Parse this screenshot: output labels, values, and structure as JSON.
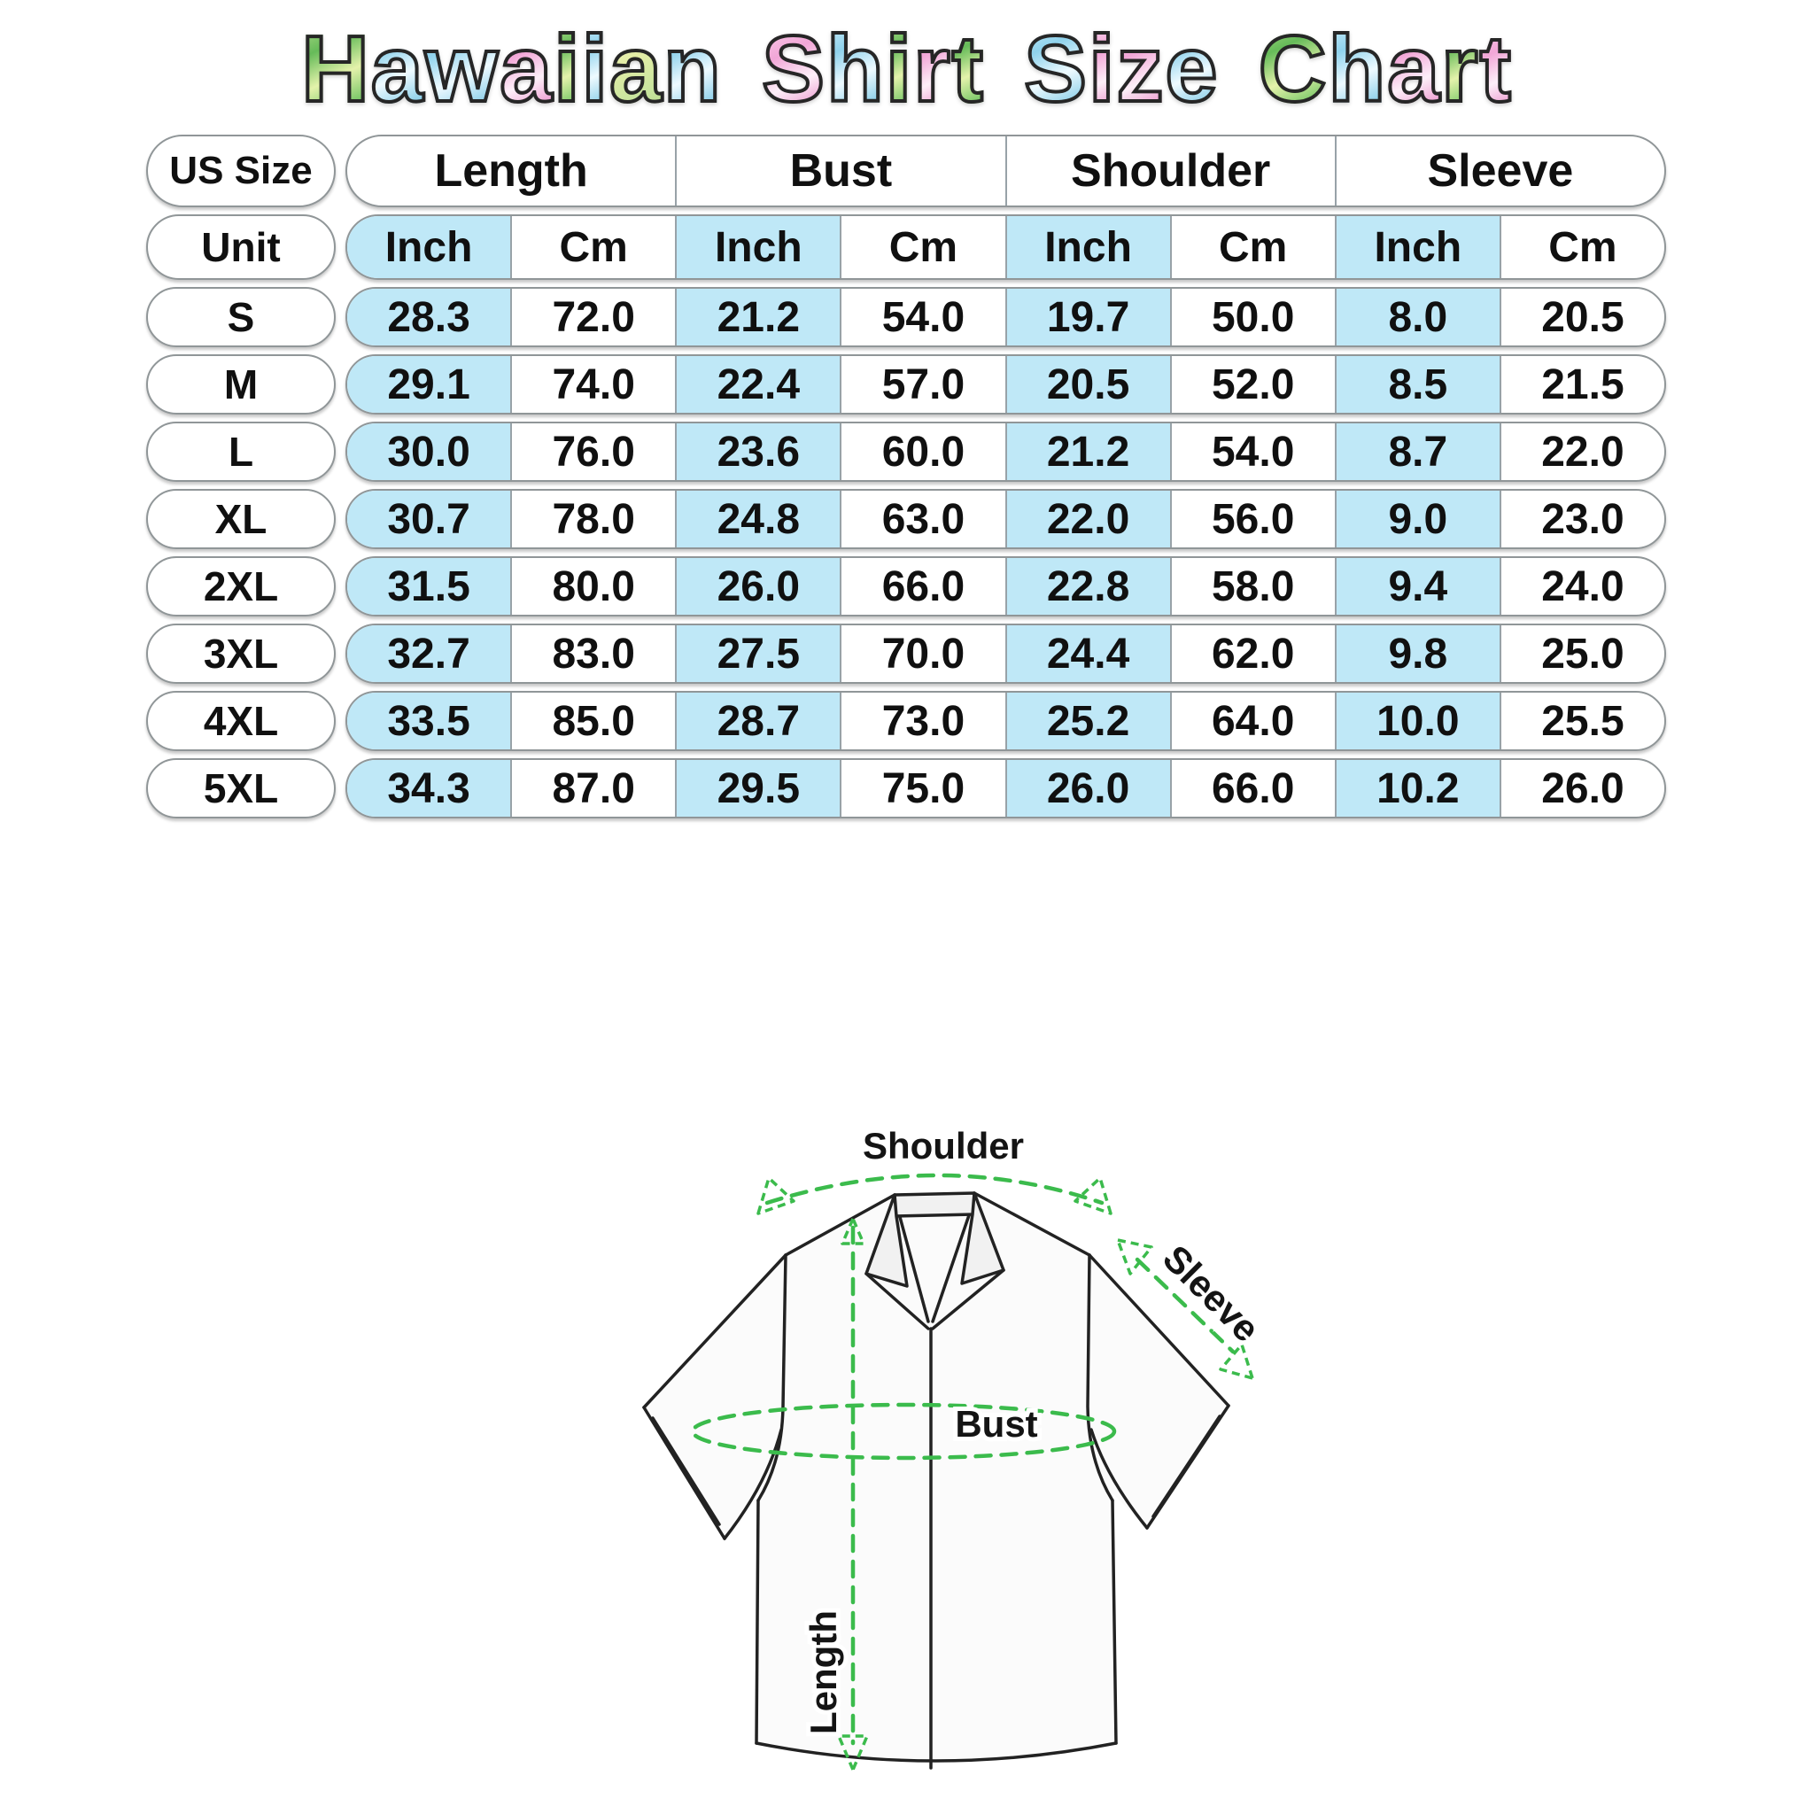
{
  "title": "Hawaiian Shirt Size Chart",
  "colors": {
    "highlight_blue": "#bfe8f7",
    "annotation_green": "#3bbb4c",
    "border_gray": "#909698"
  },
  "table": {
    "corner_label": "US Size",
    "unit_label": "Unit",
    "groups": [
      {
        "label": "Length"
      },
      {
        "label": "Bust"
      },
      {
        "label": "Shoulder"
      },
      {
        "label": "Sleeve"
      }
    ],
    "unit_headers": [
      "Inch",
      "Cm",
      "Inch",
      "Cm",
      "Inch",
      "Cm",
      "Inch",
      "Cm"
    ],
    "rows": [
      {
        "size": "S",
        "values": [
          "28.3",
          "72.0",
          "21.2",
          "54.0",
          "19.7",
          "50.0",
          "8.0",
          "20.5"
        ]
      },
      {
        "size": "M",
        "values": [
          "29.1",
          "74.0",
          "22.4",
          "57.0",
          "20.5",
          "52.0",
          "8.5",
          "21.5"
        ]
      },
      {
        "size": "L",
        "values": [
          "30.0",
          "76.0",
          "23.6",
          "60.0",
          "21.2",
          "54.0",
          "8.7",
          "22.0"
        ]
      },
      {
        "size": "XL",
        "values": [
          "30.7",
          "78.0",
          "24.8",
          "63.0",
          "22.0",
          "56.0",
          "9.0",
          "23.0"
        ]
      },
      {
        "size": "2XL",
        "values": [
          "31.5",
          "80.0",
          "26.0",
          "66.0",
          "22.8",
          "58.0",
          "9.4",
          "24.0"
        ]
      },
      {
        "size": "3XL",
        "values": [
          "32.7",
          "83.0",
          "27.5",
          "70.0",
          "24.4",
          "62.0",
          "9.8",
          "25.0"
        ]
      },
      {
        "size": "4XL",
        "values": [
          "33.5",
          "85.0",
          "28.7",
          "73.0",
          "25.2",
          "64.0",
          "10.0",
          "25.5"
        ]
      },
      {
        "size": "5XL",
        "values": [
          "34.3",
          "87.0",
          "29.5",
          "75.0",
          "26.0",
          "66.0",
          "10.2",
          "26.0"
        ]
      }
    ]
  },
  "diagram": {
    "shoulder_label": "Shoulder",
    "sleeve_label": "Sleeve",
    "bust_label": "Bust",
    "length_label": "Length"
  },
  "chart_data": {
    "type": "table",
    "title": "Hawaiian Shirt Size Chart",
    "columns": [
      "US Size",
      "Length Inch",
      "Length Cm",
      "Bust Inch",
      "Bust Cm",
      "Shoulder Inch",
      "Shoulder Cm",
      "Sleeve Inch",
      "Sleeve Cm"
    ],
    "rows": [
      [
        "S",
        28.3,
        72.0,
        21.2,
        54.0,
        19.7,
        50.0,
        8.0,
        20.5
      ],
      [
        "M",
        29.1,
        74.0,
        22.4,
        57.0,
        20.5,
        52.0,
        8.5,
        21.5
      ],
      [
        "L",
        30.0,
        76.0,
        23.6,
        60.0,
        21.2,
        54.0,
        8.7,
        22.0
      ],
      [
        "XL",
        30.7,
        78.0,
        24.8,
        63.0,
        22.0,
        56.0,
        9.0,
        23.0
      ],
      [
        "2XL",
        31.5,
        80.0,
        26.0,
        66.0,
        22.8,
        58.0,
        9.4,
        24.0
      ],
      [
        "3XL",
        32.7,
        83.0,
        27.5,
        70.0,
        24.4,
        62.0,
        9.8,
        25.0
      ],
      [
        "4XL",
        33.5,
        85.0,
        28.7,
        73.0,
        25.2,
        64.0,
        10.0,
        25.5
      ],
      [
        "5XL",
        34.3,
        87.0,
        29.5,
        75.0,
        26.0,
        66.0,
        10.2,
        26.0
      ]
    ]
  }
}
